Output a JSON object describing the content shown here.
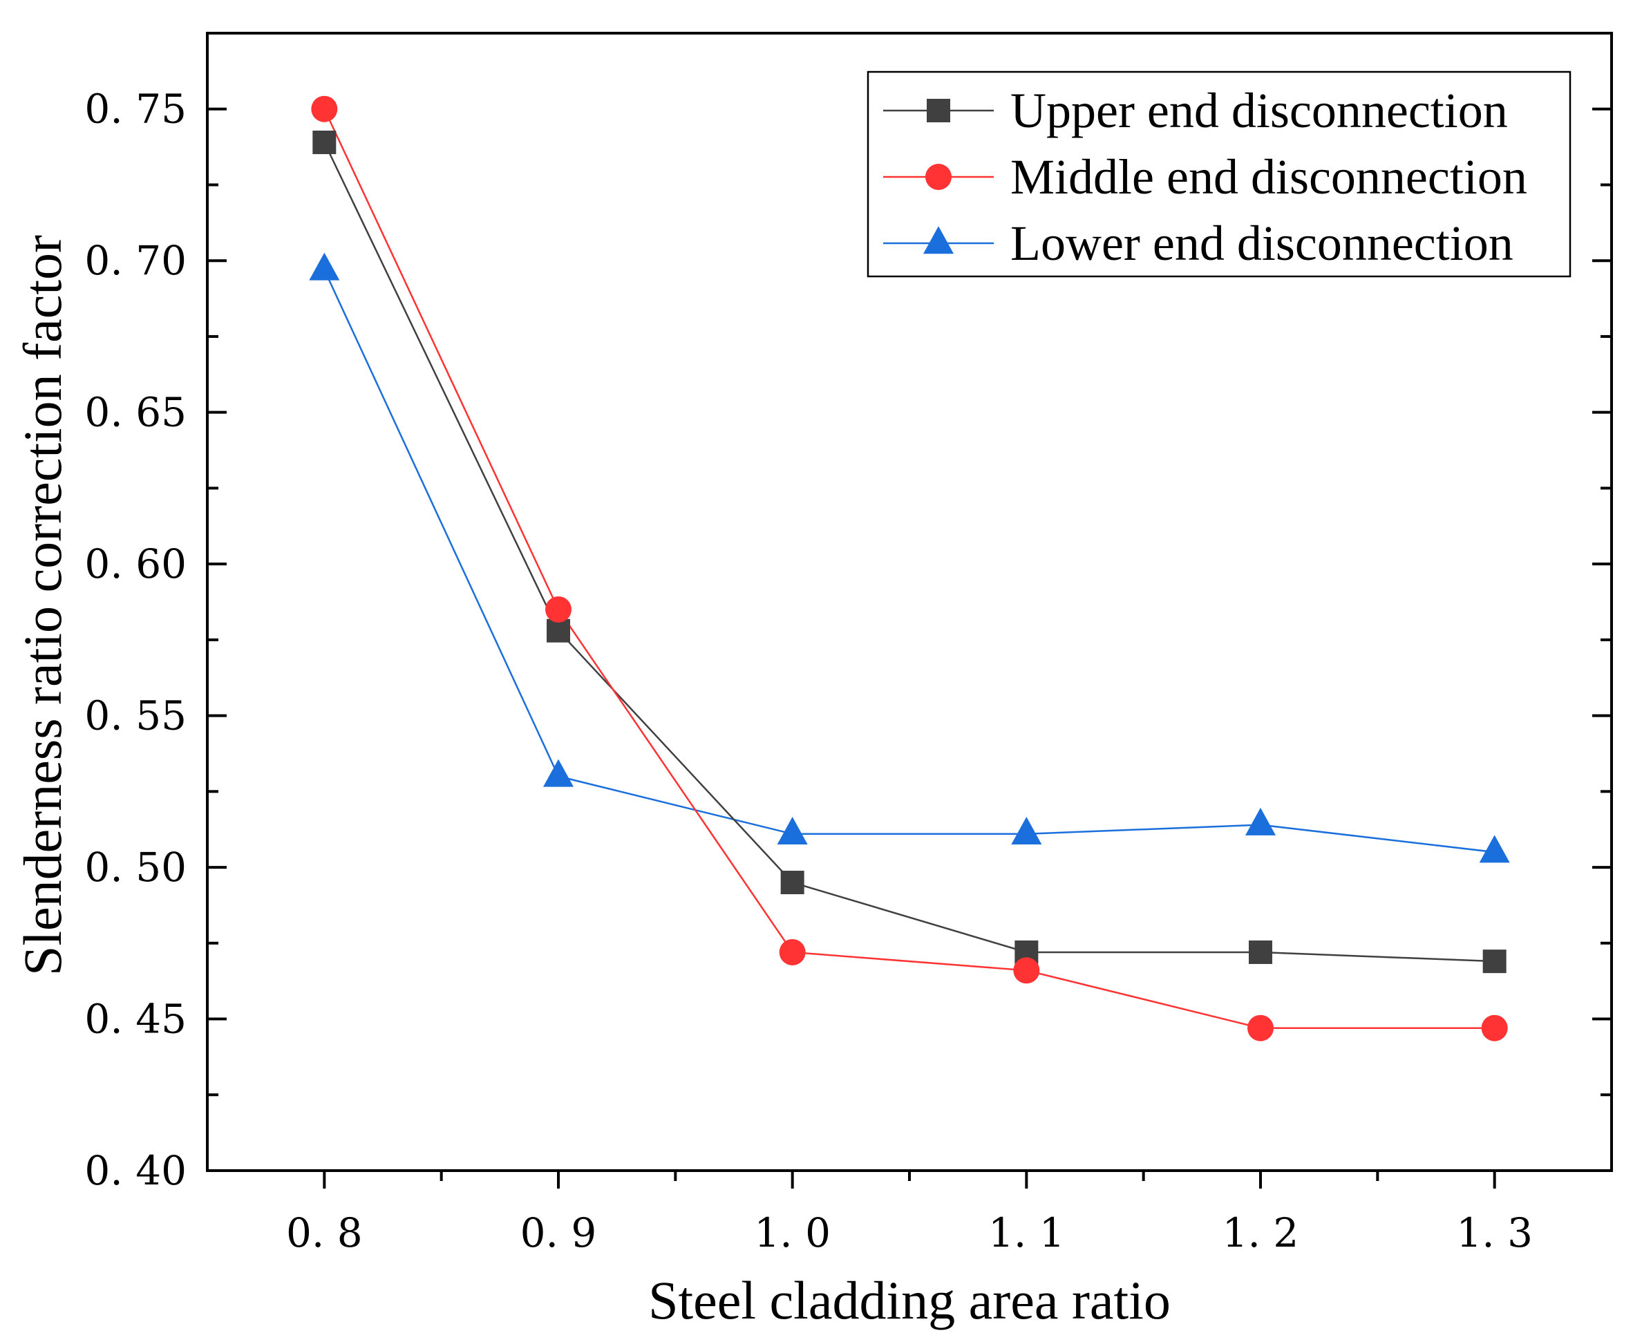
{
  "chart_data": {
    "type": "line",
    "xlabel": "Steel cladding area ratio",
    "ylabel": "Slenderness ratio correction factor",
    "xlim": [
      0.75,
      1.35
    ],
    "ylim": [
      0.4,
      0.775
    ],
    "x": [
      0.8,
      0.9,
      1.0,
      1.1,
      1.2,
      1.3
    ],
    "x_tick_labels": [
      "0. 8",
      "0. 9",
      "1. 0",
      "1. 1",
      "1. 2",
      "1. 3"
    ],
    "y_ticks": [
      0.4,
      0.45,
      0.5,
      0.55,
      0.6,
      0.65,
      0.7,
      0.75
    ],
    "y_tick_labels": [
      "0. 40",
      "0. 45",
      "0. 50",
      "0. 55",
      "0. 60",
      "0. 65",
      "0. 70",
      "0. 75"
    ],
    "legend_position": "top-right",
    "series": [
      {
        "name": "Upper end disconnection",
        "color": "#404040",
        "marker": "square",
        "values": [
          0.739,
          0.578,
          0.495,
          0.472,
          0.472,
          0.469
        ]
      },
      {
        "name": "Middle end disconnection",
        "color": "#ff3333",
        "marker": "circle",
        "values": [
          0.75,
          0.585,
          0.472,
          0.466,
          0.447,
          0.447
        ]
      },
      {
        "name": "Lower end disconnection",
        "color": "#1a6fdc",
        "marker": "triangle",
        "values": [
          0.697,
          0.53,
          0.511,
          0.511,
          0.514,
          0.505
        ]
      }
    ]
  }
}
